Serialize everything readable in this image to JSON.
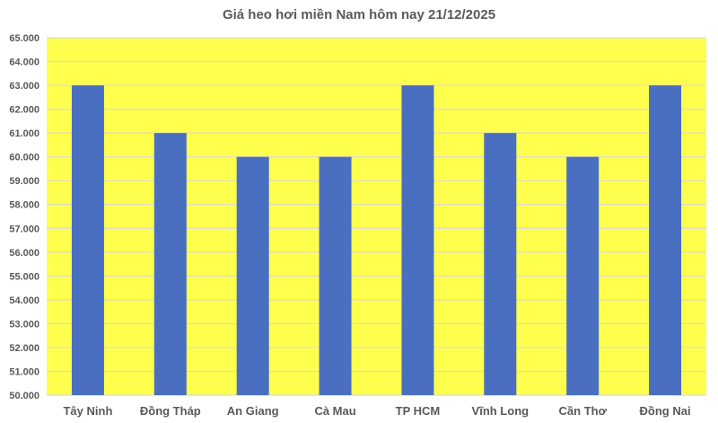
{
  "chart_data": {
    "type": "bar",
    "title": "Giá heo hơi miền Nam hôm nay 21/12/2025",
    "xlabel": "",
    "ylabel": "",
    "categories": [
      "Tây Ninh",
      "Đồng Tháp",
      "An Giang",
      "Cà Mau",
      "TP HCM",
      "Vĩnh Long",
      "Cần Thơ",
      "Đồng Nai"
    ],
    "values": [
      63000,
      61000,
      60000,
      60000,
      63000,
      61000,
      60000,
      63000
    ],
    "ylim": [
      50000,
      65000
    ],
    "yticks": [
      "50.000",
      "51.000",
      "52.000",
      "53.000",
      "54.000",
      "55.000",
      "56.000",
      "57.000",
      "58.000",
      "59.000",
      "60.000",
      "61.000",
      "62.000",
      "63.000",
      "64.000",
      "65.000"
    ],
    "grid": true,
    "legend": "none",
    "colors": {
      "bar": "#4A6FC0",
      "plot_background": "#FFFF4D",
      "grid": "#D9D9D9",
      "text": "#595959"
    }
  }
}
